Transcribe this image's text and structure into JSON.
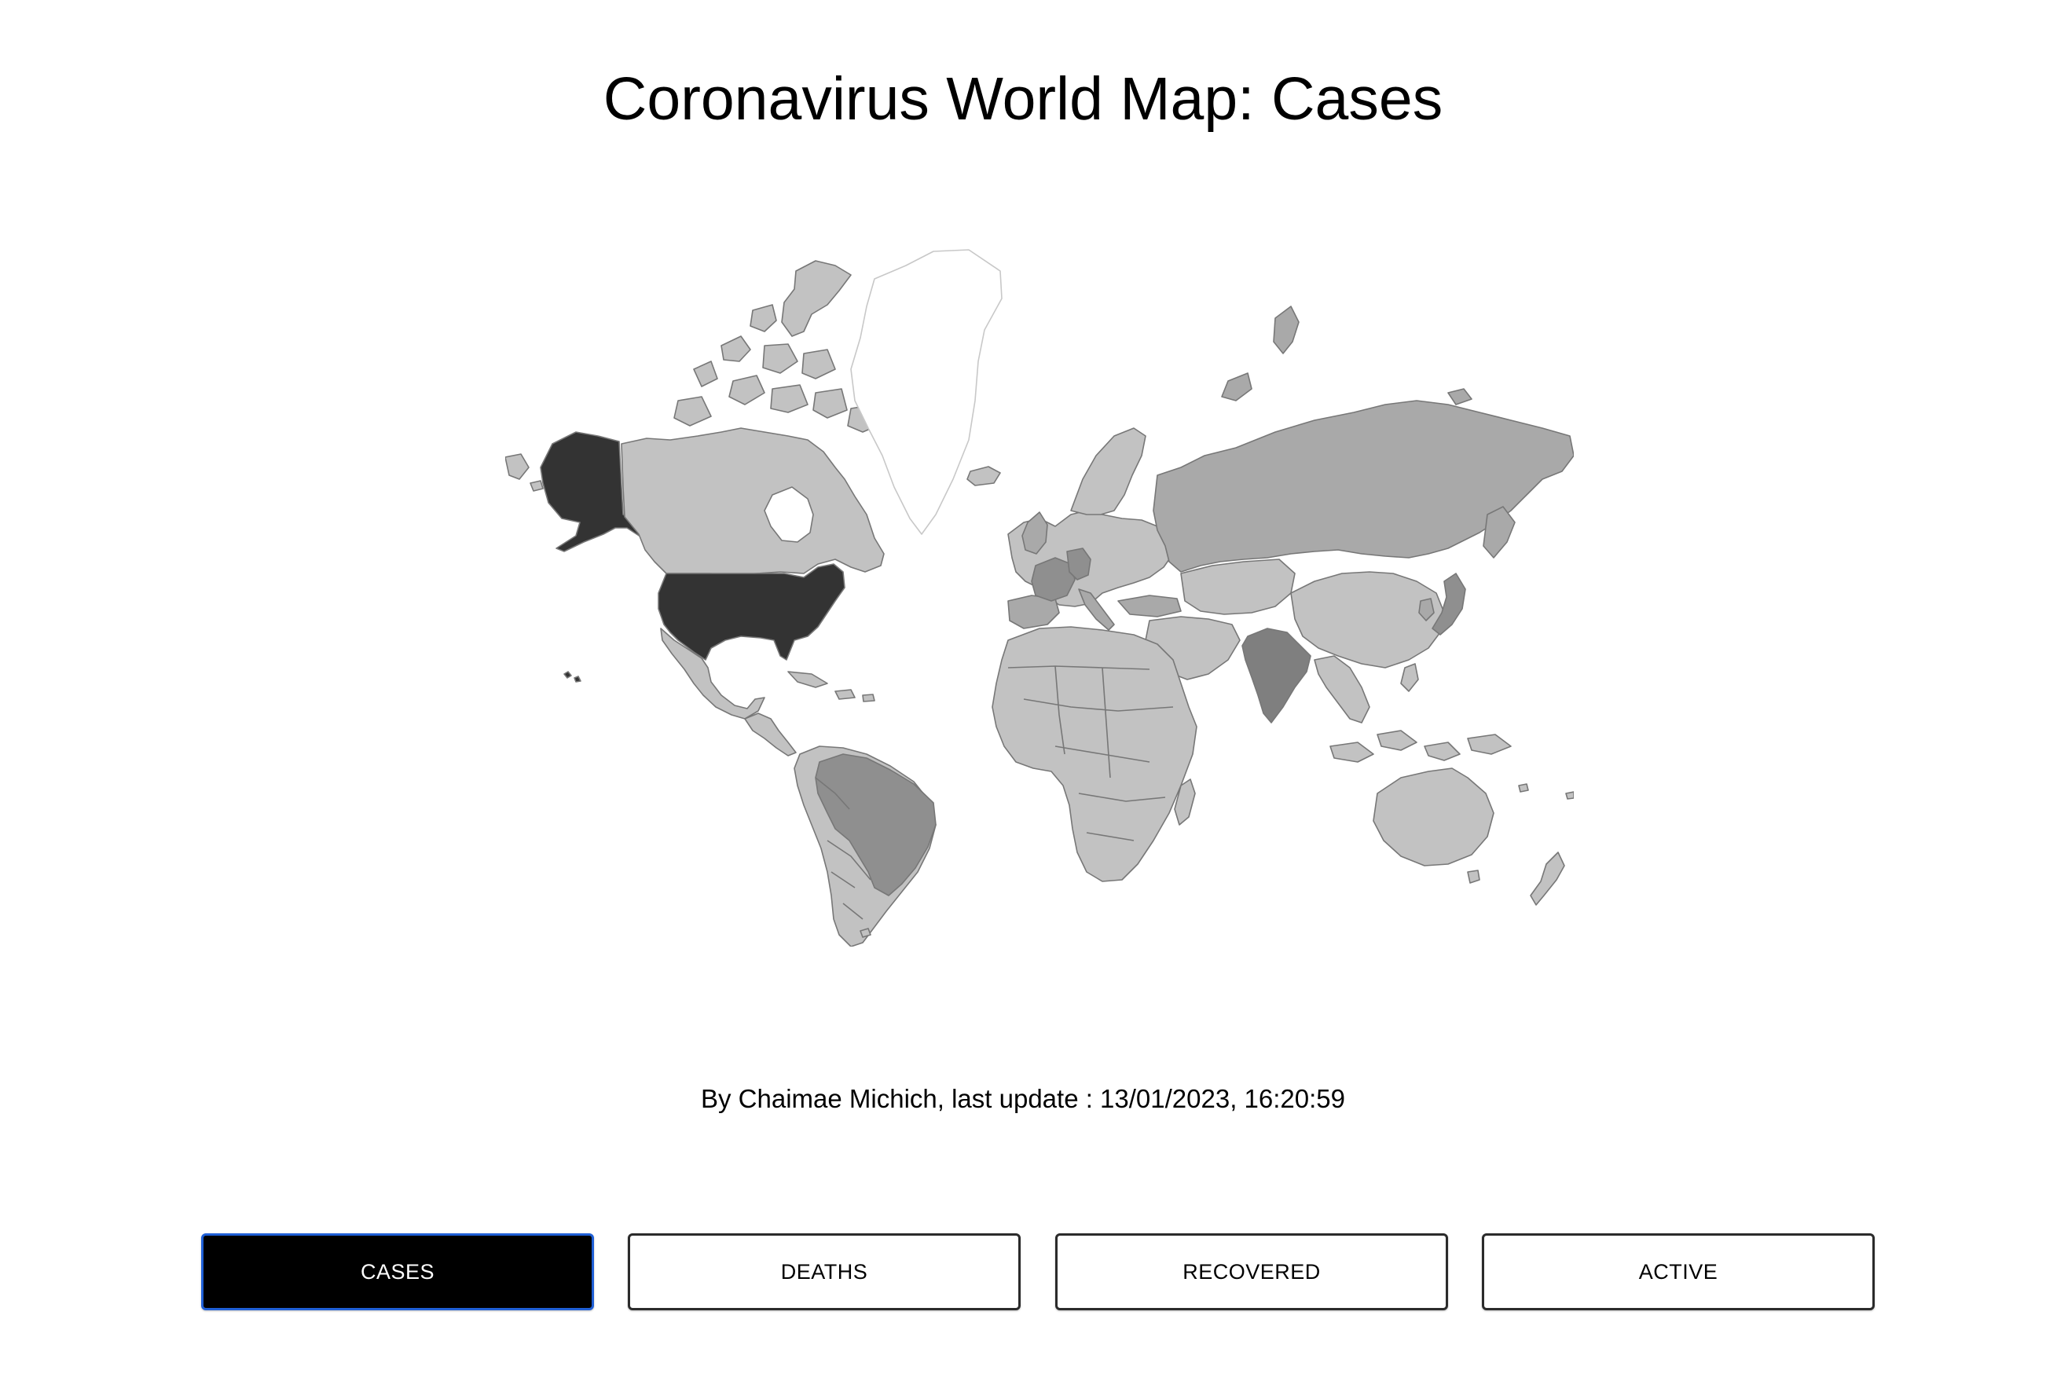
{
  "page": {
    "title": "Coronavirus World Map: Cases"
  },
  "credit": {
    "author_text": "By Chaimae Michich, last update : 13/01/2023, 16:20:59"
  },
  "legend_colors": {
    "highest": "#333333",
    "high": "#7f7f7f",
    "medium_high": "#8f8f8f",
    "medium": "#a9a9a9",
    "low": "#c2c2c2",
    "no_data": "#ffffff",
    "border": "#777777"
  },
  "countries_highlighted": [
    {
      "name": "United States",
      "level": "highest"
    },
    {
      "name": "India",
      "level": "high"
    },
    {
      "name": "Brazil",
      "level": "medium_high"
    },
    {
      "name": "France",
      "level": "medium_high"
    },
    {
      "name": "Germany",
      "level": "medium_high"
    },
    {
      "name": "Japan",
      "level": "medium_high"
    },
    {
      "name": "Russia",
      "level": "medium"
    },
    {
      "name": "Greenland",
      "level": "no_data"
    }
  ],
  "buttons": [
    {
      "label": "CASES",
      "active": true
    },
    {
      "label": "DEATHS",
      "active": false
    },
    {
      "label": "RECOVERED",
      "active": false
    },
    {
      "label": "ACTIVE",
      "active": false
    }
  ]
}
